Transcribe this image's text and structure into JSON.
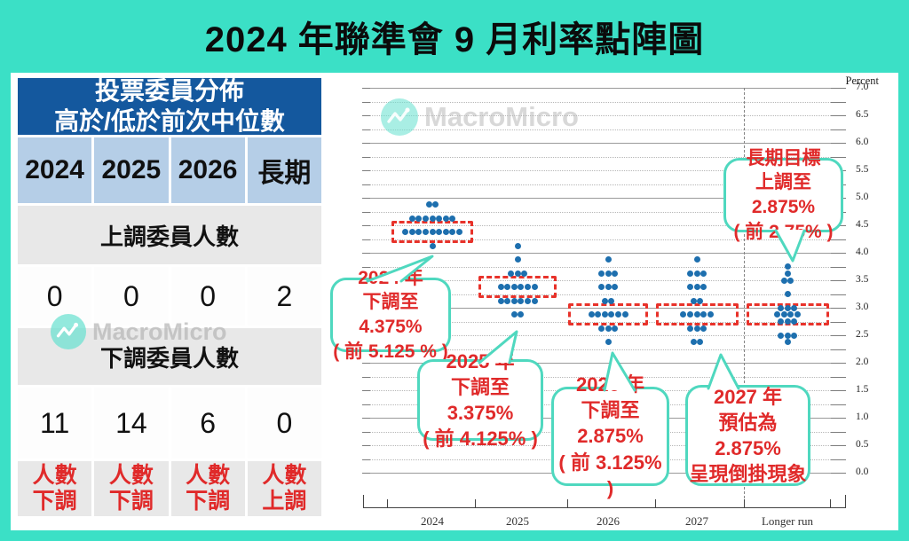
{
  "title": "2024 年聯準會 9 月利率點陣圖",
  "watermark": {
    "brand": "MacroMicro"
  },
  "table": {
    "header_line1": "投票委員分佈",
    "header_line2": "高於/低於前次中位數",
    "columns": [
      "2024",
      "2025",
      "2026",
      "長期"
    ],
    "section_up": "上調委員人數",
    "up_counts": [
      "0",
      "0",
      "0",
      "2"
    ],
    "section_down": "下調委員人數",
    "down_counts": [
      "11",
      "14",
      "6",
      "0"
    ],
    "footer": [
      {
        "top": "人數",
        "bottom": "下調"
      },
      {
        "top": "人數",
        "bottom": "下調"
      },
      {
        "top": "人數",
        "bottom": "下調"
      },
      {
        "top": "人數",
        "bottom": "上調"
      }
    ]
  },
  "chart_data": {
    "type": "scatter",
    "subtype": "fed-dot-plot",
    "axis_label": "Percent",
    "categories": [
      "2024",
      "2025",
      "2026",
      "2027",
      "Longer run"
    ],
    "ylim": [
      0.0,
      7.0
    ],
    "ytick_step": 0.5,
    "grid_step": 0.25,
    "grid": true,
    "separator_before_last_category": true,
    "dot_color": "#1d6fae",
    "median_box_color": "#e8322a",
    "series": [
      {
        "name": "2024",
        "median": 4.375,
        "dots": {
          "4.875": 2,
          "4.625": 7,
          "4.375": 9,
          "4.125": 1
        }
      },
      {
        "name": "2025",
        "median": 3.375,
        "dots": {
          "4.125": 1,
          "3.875": 1,
          "3.625": 3,
          "3.375": 6,
          "3.125": 6,
          "2.875": 2
        }
      },
      {
        "name": "2026",
        "median": 2.875,
        "dots": {
          "3.875": 1,
          "3.625": 3,
          "3.375": 3,
          "3.125": 2,
          "2.875": 6,
          "2.625": 3,
          "2.375": 1
        }
      },
      {
        "name": "2027",
        "median": 2.875,
        "dots": {
          "3.875": 1,
          "3.625": 3,
          "3.375": 3,
          "3.125": 2,
          "2.875": 5,
          "2.625": 3,
          "2.375": 2
        }
      },
      {
        "name": "Longer run",
        "median": 2.875,
        "dots": {
          "3.75": 1,
          "3.625": 1,
          "3.5": 2,
          "3.25": 1,
          "3.0": 3,
          "2.875": 4,
          "2.75": 3,
          "2.5": 3,
          "2.375": 1
        }
      }
    ]
  },
  "callouts": {
    "longrun": {
      "lines": [
        "長期目標",
        "上調至 2.875%",
        "( 前 2.75% )"
      ]
    },
    "y2024": {
      "lines": [
        "2024 年",
        "下調至 4.375%",
        "( 前 5.125 % )"
      ]
    },
    "y2025": {
      "lines": [
        "2025 年",
        "下調至 3.375%",
        "( 前 4.125% )"
      ]
    },
    "y2026": {
      "lines": [
        "2026 年",
        "下調至 2.875%",
        "( 前 3.125% )"
      ]
    },
    "y2027": {
      "lines": [
        "2027 年",
        "預估為 2.875%",
        "呈現倒掛現象"
      ]
    }
  },
  "colors": {
    "background_teal": "#3be0c6",
    "callout_border": "#4fd8bf",
    "red_text": "#e02a2a",
    "table_header_blue": "#14589e",
    "table_light_blue": "#b5cee7",
    "table_gray": "#e8e8e8",
    "dot_blue": "#1d6fae"
  }
}
